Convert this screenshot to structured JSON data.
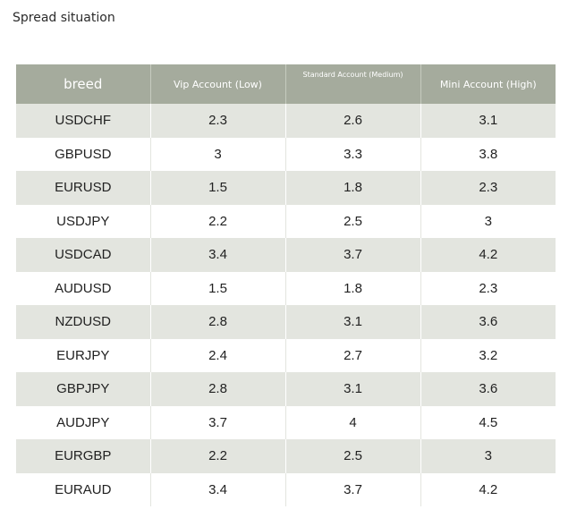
{
  "title": "Spread situation",
  "table": {
    "headers": [
      "breed",
      "Vip Account (Low)",
      "Standard Account (Medium)",
      "Mini Account (High)"
    ],
    "rows": [
      [
        "USDCHF",
        "2.3",
        "2.6",
        "3.1"
      ],
      [
        "GBPUSD",
        "3",
        "3.3",
        "3.8"
      ],
      [
        "EURUSD",
        "1.5",
        "1.8",
        "2.3"
      ],
      [
        "USDJPY",
        "2.2",
        "2.5",
        "3"
      ],
      [
        "USDCAD",
        "3.4",
        "3.7",
        "4.2"
      ],
      [
        "AUDUSD",
        "1.5",
        "1.8",
        "2.3"
      ],
      [
        "NZDUSD",
        "2.8",
        "3.1",
        "3.6"
      ],
      [
        "EURJPY",
        "2.4",
        "2.7",
        "3.2"
      ],
      [
        "GBPJPY",
        "2.8",
        "3.1",
        "3.6"
      ],
      [
        "AUDJPY",
        "3.7",
        "4",
        "4.5"
      ],
      [
        "EURGBP",
        "2.2",
        "2.5",
        "3"
      ],
      [
        "EURAUD",
        "3.4",
        "3.7",
        "4.2"
      ]
    ]
  },
  "colors": {
    "header_bg": "#a5ab9d",
    "stripe_bg": "#e3e5df"
  }
}
